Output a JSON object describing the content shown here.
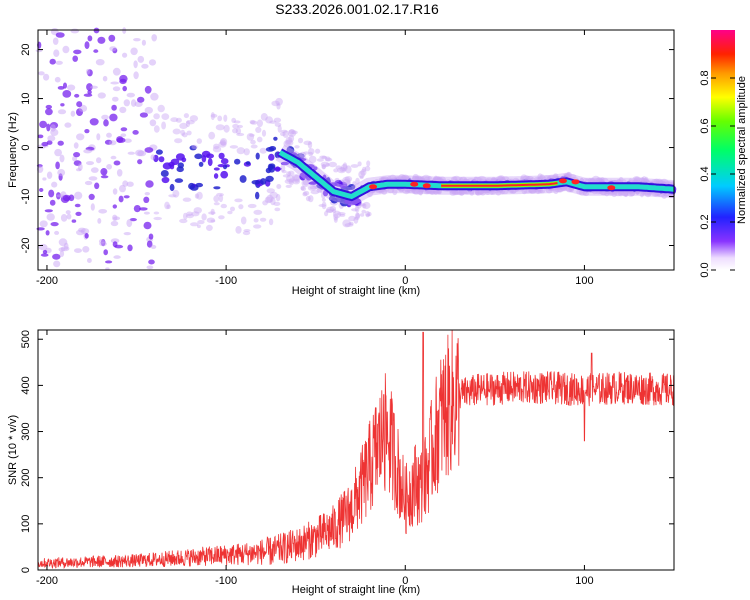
{
  "title": "S233.2026.001.02.17.R16",
  "chart_data": [
    {
      "type": "heatmap",
      "name": "spectrogram",
      "xlabel": "Height of straight line (km)",
      "ylabel": "Frequency (Hz)",
      "xlim": [
        -205,
        150
      ],
      "ylim": [
        -25,
        24
      ],
      "xticks": [
        -200,
        -100,
        0,
        100
      ],
      "yticks": [
        -20,
        -10,
        0,
        10,
        20
      ],
      "colorbar": {
        "label": "Normalized spectral amplitude",
        "range": [
          0,
          1
        ],
        "ticks": [
          0.0,
          0.2,
          0.4,
          0.6,
          0.8
        ],
        "tick_labels": [
          "0.0",
          "0.2",
          "0.4",
          "0.6",
          "0.8"
        ]
      },
      "ridge": {
        "description_points_x": [
          -205,
          -150,
          -120,
          -100,
          -80,
          -70,
          -60,
          -50,
          -40,
          -30,
          -20,
          -10,
          0,
          20,
          50,
          80,
          90,
          100,
          110,
          130,
          150
        ],
        "frequency_y": [
          -5,
          -4,
          -4,
          -5,
          -6,
          -1,
          -3,
          -6,
          -9,
          -10,
          -8,
          -7.5,
          -7.5,
          -7.8,
          -7.8,
          -7.5,
          -7,
          -8,
          -8,
          -8,
          -8.5
        ]
      }
    },
    {
      "type": "line",
      "name": "snr",
      "xlabel": "Height of straight line (km)",
      "ylabel": "SNR (10 * v/v)",
      "xlim": [
        -205,
        150
      ],
      "ylim": [
        0,
        520
      ],
      "xticks": [
        -200,
        -100,
        0,
        100
      ],
      "yticks": [
        0,
        100,
        200,
        300,
        400,
        500
      ],
      "color": "#ee3333",
      "envelope": {
        "x": [
          -205,
          -150,
          -130,
          -110,
          -90,
          -75,
          -60,
          -50,
          -40,
          -30,
          -22,
          -15,
          -10,
          -5,
          0,
          5,
          10,
          15,
          20,
          25,
          30,
          40,
          60,
          80,
          100,
          120,
          150
        ],
        "y": [
          15,
          20,
          25,
          30,
          35,
          40,
          55,
          70,
          90,
          130,
          200,
          270,
          300,
          230,
          150,
          190,
          180,
          260,
          330,
          360,
          380,
          390,
          395,
          395,
          390,
          395,
          390
        ]
      },
      "spikes": [
        {
          "x": -12,
          "y": 380
        },
        {
          "x": 10,
          "y": 515
        },
        {
          "x": 104,
          "y": 470
        },
        {
          "x": 100,
          "y": 280
        }
      ]
    }
  ]
}
